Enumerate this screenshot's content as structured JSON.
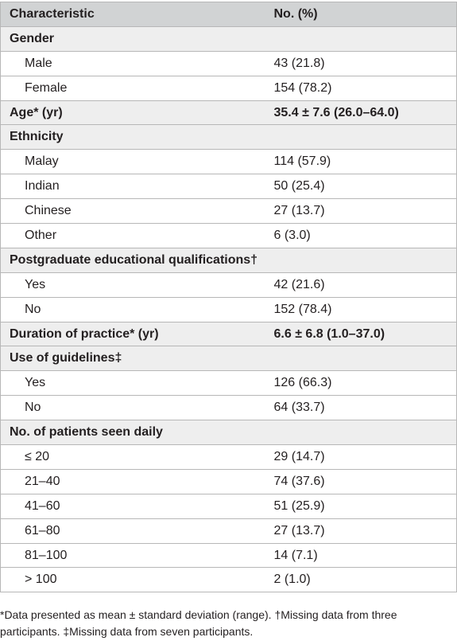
{
  "table": {
    "headers": [
      "Characteristic",
      "No. (%)"
    ],
    "rows": [
      {
        "type": "category",
        "label": "Gender",
        "value": ""
      },
      {
        "type": "sub",
        "label": "Male",
        "value": "43 (21.8)"
      },
      {
        "type": "sub",
        "label": "Female",
        "value": "154 (78.2)"
      },
      {
        "type": "category",
        "label": "Age* (yr)",
        "value": "35.4 ± 7.6 (26.0–64.0)"
      },
      {
        "type": "category",
        "label": "Ethnicity",
        "value": ""
      },
      {
        "type": "sub",
        "label": "Malay",
        "value": "114 (57.9)"
      },
      {
        "type": "sub",
        "label": "Indian",
        "value": "50 (25.4)"
      },
      {
        "type": "sub",
        "label": "Chinese",
        "value": "27 (13.7)"
      },
      {
        "type": "sub",
        "label": "Other",
        "value": "6 (3.0)"
      },
      {
        "type": "category",
        "label": "Postgraduate educational qualifications†",
        "value": ""
      },
      {
        "type": "sub",
        "label": "Yes",
        "value": "42 (21.6)"
      },
      {
        "type": "sub",
        "label": "No",
        "value": "152 (78.4)"
      },
      {
        "type": "category",
        "label": "Duration of practice* (yr)",
        "value": "6.6 ± 6.8 (1.0–37.0)"
      },
      {
        "type": "category",
        "label": "Use of guidelines‡",
        "value": ""
      },
      {
        "type": "sub",
        "label": "Yes",
        "value": "126 (66.3)"
      },
      {
        "type": "sub",
        "label": "No",
        "value": "64 (33.7)"
      },
      {
        "type": "category",
        "label": "No. of patients seen daily",
        "value": ""
      },
      {
        "type": "sub",
        "label": "≤ 20",
        "value": "29 (14.7)"
      },
      {
        "type": "sub",
        "label": "21–40",
        "value": "74 (37.6)"
      },
      {
        "type": "sub",
        "label": "41–60",
        "value": "51 (25.9)"
      },
      {
        "type": "sub",
        "label": "61–80",
        "value": "27 (13.7)"
      },
      {
        "type": "sub",
        "label": "81–100",
        "value": "14 (7.1)"
      },
      {
        "type": "sub",
        "label": "> 100",
        "value": "2 (1.0)"
      }
    ]
  },
  "footnote": {
    "line1": "*Data presented as mean ± standard deviation (range). †Missing data from three",
    "line2": "participants. ‡Missing data from seven participants."
  },
  "colors": {
    "header_bg": "#d1d3d4",
    "category_bg": "#eeeeee",
    "border": "#b7b7b7",
    "text": "#231f20"
  }
}
